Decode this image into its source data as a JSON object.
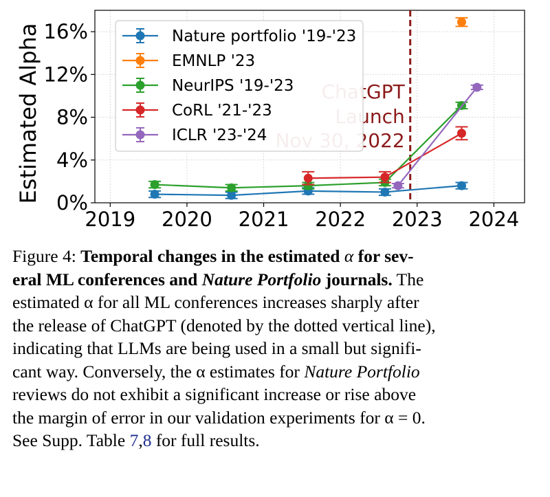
{
  "chart_data": {
    "type": "line",
    "ylabel": "Estimated Alpha",
    "xlabel": "",
    "xlim": [
      2018.8,
      2024.4
    ],
    "ylim": [
      0,
      0.18
    ],
    "x_ticks": [
      2019,
      2020,
      2021,
      2022,
      2023,
      2024
    ],
    "x_tick_labels": [
      "2019",
      "2020",
      "2021",
      "2022",
      "2023",
      "2024"
    ],
    "y_ticks": [
      0,
      0.04,
      0.08,
      0.12,
      0.16
    ],
    "y_tick_labels": [
      "0%",
      "4%",
      "8%",
      "12%",
      "16%"
    ],
    "grid": true,
    "legend_position": "upper-left",
    "series": [
      {
        "name": "Nature portfolio '19-'23",
        "color": "#1f77b4",
        "x": [
          2019.58,
          2020.58,
          2021.58,
          2022.58,
          2023.58
        ],
        "y": [
          0.008,
          0.007,
          0.011,
          0.01,
          0.016
        ],
        "err": [
          0.003,
          0.003,
          0.003,
          0.003,
          0.003
        ]
      },
      {
        "name": "EMNLP '23",
        "color": "#ff7f0e",
        "x": [
          2023.58
        ],
        "y": [
          0.169
        ],
        "err": [
          0.004
        ]
      },
      {
        "name": "NeurIPS '19-'23",
        "color": "#2ca02c",
        "x": [
          2019.58,
          2020.58,
          2021.58,
          2022.58,
          2023.58
        ],
        "y": [
          0.017,
          0.014,
          0.016,
          0.019,
          0.091
        ],
        "err": [
          0.003,
          0.003,
          0.003,
          0.003,
          0.003
        ]
      },
      {
        "name": "CoRL '21-'23",
        "color": "#d62728",
        "x": [
          2021.58,
          2022.58,
          2023.58
        ],
        "y": [
          0.023,
          0.024,
          0.065
        ],
        "err": [
          0.006,
          0.005,
          0.006
        ]
      },
      {
        "name": "ICLR '23-'24",
        "color": "#9467bd",
        "x": [
          2022.75,
          2023.78
        ],
        "y": [
          0.016,
          0.108
        ],
        "err": [
          0.002,
          0.002
        ]
      }
    ],
    "vline": {
      "x": 2022.91,
      "color": "#8b1a1a",
      "style": "dashed"
    },
    "annotation": {
      "lines": [
        "ChatGPT",
        "Launch",
        "Nov 30, 2022"
      ],
      "color": "#8b1a1a"
    }
  },
  "caption": {
    "figure_label": "Figure 4:",
    "bold_1": "Temporal changes in the estimated",
    "alpha": "α",
    "bold_2a": "for sev-",
    "bold_2b": "eral ML conferences and",
    "bold_italic": "Nature Portfolio",
    "bold_3": "journals.",
    "line2_tail": "The",
    "line3": "estimated α for all ML conferences increases sharply after",
    "line4": "the release of ChatGPT (denoted by the dotted vertical line),",
    "line5": "indicating that LLMs are being used in a small but signifi-",
    "line6_a": "cant way. Conversely, the α estimates for",
    "line6_italic": "Nature Portfolio",
    "line7": "reviews do not exhibit a significant increase or rise above",
    "line8": "the margin of error in our validation experiments for α = 0.",
    "line9_a": "See Supp. Table",
    "ref_1": "7",
    "ref_sep": ",",
    "ref_2": "8",
    "line9_b": "for full results."
  }
}
